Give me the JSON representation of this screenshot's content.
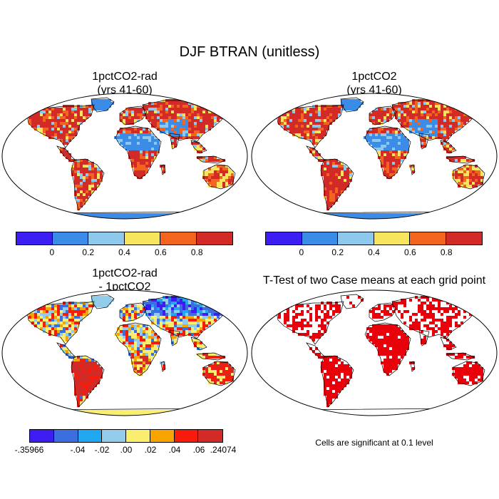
{
  "title": "DJF BTRAN (unitless)",
  "panels": {
    "tl": {
      "title_line1": "1pctCO2-rad",
      "title_line2": "(yrs 41-60)"
    },
    "tr": {
      "title_line1": "1pctCO2",
      "title_line2": "(yrs 41-60)"
    },
    "bl": {
      "title_line1": "1pctCO2-rad",
      "title_line2": "- 1pctCO2"
    },
    "br": {
      "title": "T-Test of two Case means at each grid point",
      "note": "Cells are significant at 0.1 level"
    }
  },
  "colorbars": {
    "btran": {
      "colors": [
        "#3d1ef2",
        "#3a8ce6",
        "#8ec8ec",
        "#f7e55d",
        "#f3641f",
        "#d22a26"
      ],
      "labels": [
        "0",
        "0.2",
        "0.4",
        "0.6",
        "0.8"
      ]
    },
    "diff": {
      "colors": [
        "#3d1ef2",
        "#3b6fe0",
        "#1fa8f0",
        "#92cceb",
        "#f9ee6e",
        "#f7a400",
        "#f61b0b",
        "#d22a26"
      ],
      "labels": [
        "-.35966",
        "-.04",
        "-.02",
        ".00",
        ".02",
        ".04",
        ".06",
        ".24074"
      ]
    }
  },
  "map_colors": {
    "ocean": "#ffffff",
    "coast": "#000000",
    "significant": "#e8000b"
  }
}
